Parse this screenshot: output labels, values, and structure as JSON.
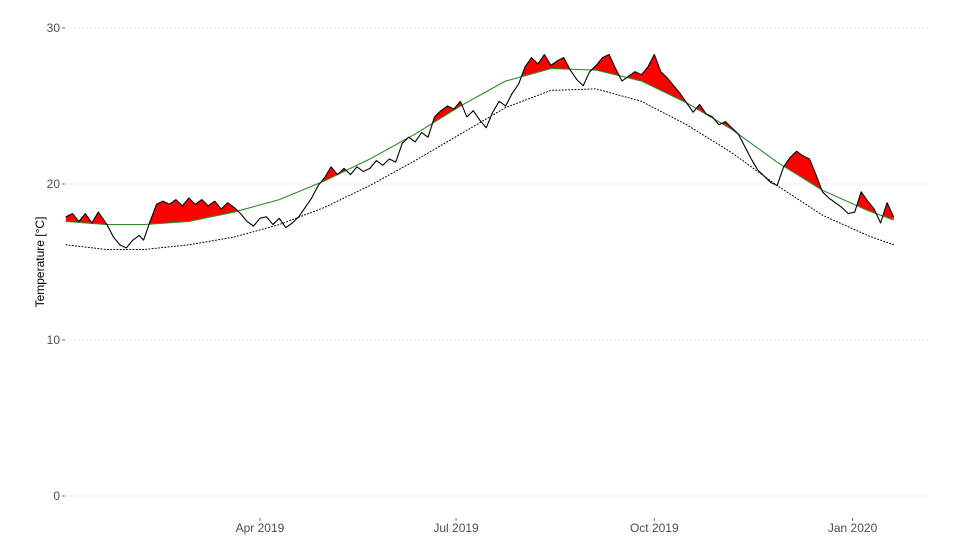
{
  "chart_data": {
    "type": "line",
    "title": "",
    "xlabel": "",
    "ylabel": "Temperature [°C]",
    "ylim": [
      0,
      30
    ],
    "xlim": [
      "2019-01-01",
      "2020-02-05"
    ],
    "y_ticks": [
      0,
      10,
      20,
      30
    ],
    "x_ticks": [
      {
        "date": "2019-04-01",
        "label": "Apr 2019"
      },
      {
        "date": "2019-07-01",
        "label": "Jul 2019"
      },
      {
        "date": "2019-10-01",
        "label": "Oct 2019"
      },
      {
        "date": "2020-01-01",
        "label": "Jan 2020"
      }
    ],
    "grid": "horizontal dotted",
    "legend": "none",
    "colors": {
      "observed": "#000000",
      "climatology": "#2e8b2e",
      "threshold": "#000000",
      "exceedance_fill": "#ff0000",
      "grid": "#d9d9d9"
    },
    "series": [
      {
        "style": "solid",
        "color": "#000000",
        "points": [
          [
            "2019-01-01",
            17.9
          ],
          [
            "2019-01-04",
            18.1
          ],
          [
            "2019-01-07",
            17.6
          ],
          [
            "2019-01-10",
            18.1
          ],
          [
            "2019-01-13",
            17.5
          ],
          [
            "2019-01-16",
            18.2
          ],
          [
            "2019-01-20",
            17.4
          ],
          [
            "2019-01-23",
            16.6
          ],
          [
            "2019-01-26",
            16.1
          ],
          [
            "2019-01-29",
            15.9
          ],
          [
            "2019-02-01",
            16.4
          ],
          [
            "2019-02-04",
            16.7
          ],
          [
            "2019-02-06",
            16.4
          ],
          [
            "2019-02-09",
            17.6
          ],
          [
            "2019-02-12",
            18.7
          ],
          [
            "2019-02-15",
            18.9
          ],
          [
            "2019-02-18",
            18.7
          ],
          [
            "2019-02-21",
            19.0
          ],
          [
            "2019-02-24",
            18.6
          ],
          [
            "2019-02-27",
            19.1
          ],
          [
            "2019-03-02",
            18.7
          ],
          [
            "2019-03-05",
            19.0
          ],
          [
            "2019-03-08",
            18.6
          ],
          [
            "2019-03-11",
            18.9
          ],
          [
            "2019-03-14",
            18.4
          ],
          [
            "2019-03-17",
            18.8
          ],
          [
            "2019-03-20",
            18.5
          ],
          [
            "2019-03-23",
            18.1
          ],
          [
            "2019-03-26",
            17.6
          ],
          [
            "2019-03-29",
            17.3
          ],
          [
            "2019-04-01",
            17.8
          ],
          [
            "2019-04-04",
            17.9
          ],
          [
            "2019-04-07",
            17.4
          ],
          [
            "2019-04-10",
            17.8
          ],
          [
            "2019-04-13",
            17.2
          ],
          [
            "2019-04-16",
            17.5
          ],
          [
            "2019-04-19",
            17.9
          ],
          [
            "2019-04-22",
            18.5
          ],
          [
            "2019-04-25",
            19.1
          ],
          [
            "2019-04-28",
            19.9
          ],
          [
            "2019-05-01",
            20.4
          ],
          [
            "2019-05-04",
            21.1
          ],
          [
            "2019-05-07",
            20.6
          ],
          [
            "2019-05-10",
            21.0
          ],
          [
            "2019-05-13",
            20.6
          ],
          [
            "2019-05-16",
            21.1
          ],
          [
            "2019-05-19",
            20.8
          ],
          [
            "2019-05-22",
            21.0
          ],
          [
            "2019-05-25",
            21.5
          ],
          [
            "2019-05-28",
            21.2
          ],
          [
            "2019-05-31",
            21.6
          ],
          [
            "2019-06-03",
            21.4
          ],
          [
            "2019-06-06",
            22.6
          ],
          [
            "2019-06-09",
            23.0
          ],
          [
            "2019-06-12",
            22.7
          ],
          [
            "2019-06-15",
            23.3
          ],
          [
            "2019-06-18",
            23.0
          ],
          [
            "2019-06-21",
            24.3
          ],
          [
            "2019-06-24",
            24.7
          ],
          [
            "2019-06-27",
            25.0
          ],
          [
            "2019-06-30",
            24.8
          ],
          [
            "2019-07-03",
            25.3
          ],
          [
            "2019-07-06",
            24.3
          ],
          [
            "2019-07-09",
            24.7
          ],
          [
            "2019-07-12",
            24.1
          ],
          [
            "2019-07-15",
            23.6
          ],
          [
            "2019-07-18",
            24.6
          ],
          [
            "2019-07-21",
            25.3
          ],
          [
            "2019-07-24",
            25.0
          ],
          [
            "2019-07-27",
            25.8
          ],
          [
            "2019-07-30",
            26.4
          ],
          [
            "2019-08-02",
            27.5
          ],
          [
            "2019-08-05",
            28.1
          ],
          [
            "2019-08-08",
            27.7
          ],
          [
            "2019-08-11",
            28.3
          ],
          [
            "2019-08-14",
            27.6
          ],
          [
            "2019-08-17",
            27.9
          ],
          [
            "2019-08-20",
            28.1
          ],
          [
            "2019-08-23",
            27.3
          ],
          [
            "2019-08-26",
            26.7
          ],
          [
            "2019-08-29",
            26.3
          ],
          [
            "2019-09-01",
            27.2
          ],
          [
            "2019-09-04",
            27.6
          ],
          [
            "2019-09-07",
            28.1
          ],
          [
            "2019-09-10",
            28.3
          ],
          [
            "2019-09-13",
            27.4
          ],
          [
            "2019-09-16",
            26.6
          ],
          [
            "2019-09-19",
            26.9
          ],
          [
            "2019-09-22",
            27.2
          ],
          [
            "2019-09-25",
            27.0
          ],
          [
            "2019-09-28",
            27.5
          ],
          [
            "2019-10-01",
            28.3
          ],
          [
            "2019-10-04",
            27.2
          ],
          [
            "2019-10-07",
            26.8
          ],
          [
            "2019-10-10",
            26.3
          ],
          [
            "2019-10-13",
            25.8
          ],
          [
            "2019-10-16",
            25.2
          ],
          [
            "2019-10-19",
            24.6
          ],
          [
            "2019-10-22",
            25.1
          ],
          [
            "2019-10-25",
            24.5
          ],
          [
            "2019-10-28",
            24.3
          ],
          [
            "2019-10-31",
            23.8
          ],
          [
            "2019-11-03",
            24.0
          ],
          [
            "2019-11-06",
            23.6
          ],
          [
            "2019-11-09",
            23.2
          ],
          [
            "2019-11-12",
            22.4
          ],
          [
            "2019-11-15",
            21.6
          ],
          [
            "2019-11-18",
            20.9
          ],
          [
            "2019-11-21",
            20.5
          ],
          [
            "2019-11-24",
            20.1
          ],
          [
            "2019-11-27",
            19.9
          ],
          [
            "2019-11-30",
            21.1
          ],
          [
            "2019-12-03",
            21.7
          ],
          [
            "2019-12-06",
            22.1
          ],
          [
            "2019-12-09",
            21.8
          ],
          [
            "2019-12-12",
            21.6
          ],
          [
            "2019-12-15",
            20.6
          ],
          [
            "2019-12-18",
            19.5
          ],
          [
            "2019-12-21",
            19.1
          ],
          [
            "2019-12-24",
            18.8
          ],
          [
            "2019-12-27",
            18.5
          ],
          [
            "2019-12-30",
            18.1
          ],
          [
            "2020-01-02",
            18.2
          ],
          [
            "2020-01-05",
            19.5
          ],
          [
            "2020-01-08",
            18.9
          ],
          [
            "2020-01-11",
            18.4
          ],
          [
            "2020-01-14",
            17.5
          ],
          [
            "2020-01-17",
            18.8
          ],
          [
            "2020-01-20",
            17.9
          ]
        ]
      },
      {
        "style": "solid",
        "color": "#2e8b2e",
        "points": [
          [
            "2019-01-01",
            17.6
          ],
          [
            "2019-01-20",
            17.4
          ],
          [
            "2019-02-06",
            17.4
          ],
          [
            "2019-02-27",
            17.6
          ],
          [
            "2019-03-20",
            18.2
          ],
          [
            "2019-04-10",
            19.0
          ],
          [
            "2019-05-01",
            20.2
          ],
          [
            "2019-05-22",
            21.6
          ],
          [
            "2019-06-12",
            23.2
          ],
          [
            "2019-07-03",
            25.0
          ],
          [
            "2019-07-24",
            26.6
          ],
          [
            "2019-08-14",
            27.4
          ],
          [
            "2019-09-04",
            27.3
          ],
          [
            "2019-09-25",
            26.6
          ],
          [
            "2019-10-16",
            25.2
          ],
          [
            "2019-11-06",
            23.5
          ],
          [
            "2019-11-27",
            21.4
          ],
          [
            "2019-12-18",
            19.6
          ],
          [
            "2020-01-08",
            18.3
          ],
          [
            "2020-01-20",
            17.7
          ]
        ]
      },
      {
        "style": "dotted",
        "color": "#000000",
        "points": [
          [
            "2019-01-01",
            16.1
          ],
          [
            "2019-01-20",
            15.8
          ],
          [
            "2019-02-06",
            15.8
          ],
          [
            "2019-02-27",
            16.1
          ],
          [
            "2019-03-20",
            16.6
          ],
          [
            "2019-04-10",
            17.4
          ],
          [
            "2019-05-01",
            18.5
          ],
          [
            "2019-05-22",
            19.9
          ],
          [
            "2019-06-12",
            21.5
          ],
          [
            "2019-07-03",
            23.2
          ],
          [
            "2019-07-24",
            24.9
          ],
          [
            "2019-08-14",
            26.0
          ],
          [
            "2019-09-04",
            26.1
          ],
          [
            "2019-09-25",
            25.3
          ],
          [
            "2019-10-16",
            23.8
          ],
          [
            "2019-11-06",
            22.0
          ],
          [
            "2019-11-27",
            19.9
          ],
          [
            "2019-12-18",
            18.0
          ],
          [
            "2020-01-08",
            16.7
          ],
          [
            "2020-01-20",
            16.1
          ]
        ]
      }
    ]
  }
}
